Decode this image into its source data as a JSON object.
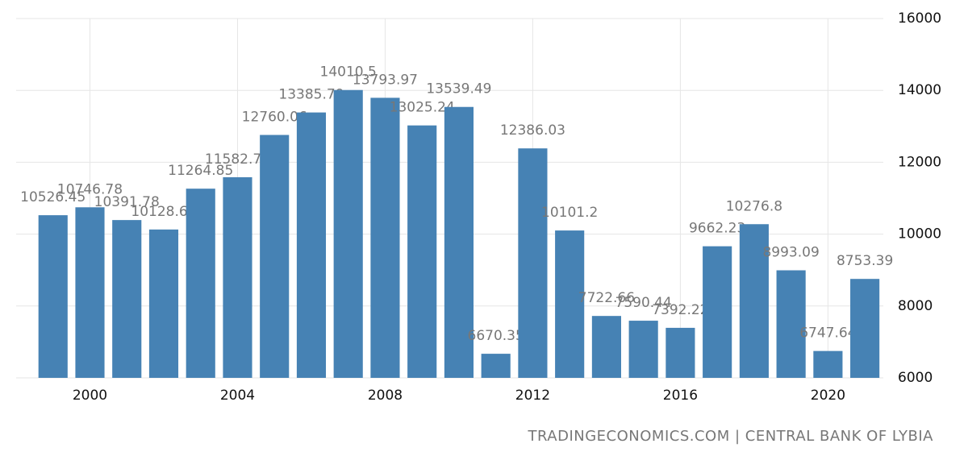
{
  "chart_data": {
    "type": "bar",
    "x": [
      1999,
      2000,
      2001,
      2002,
      2003,
      2004,
      2005,
      2006,
      2007,
      2008,
      2009,
      2010,
      2011,
      2012,
      2013,
      2014,
      2015,
      2016,
      2017,
      2018,
      2019,
      2020,
      2021
    ],
    "values": [
      10526.45,
      10746.78,
      10391.78,
      10128.67,
      11264.85,
      11582.76,
      12760.06,
      13385.79,
      14010.5,
      13793.97,
      13025.24,
      13539.49,
      6670.35,
      12386.03,
      10101.2,
      7722.66,
      7590.44,
      7392.22,
      9662.23,
      10276.8,
      8993.09,
      6747.64,
      8753.39
    ],
    "color": "#4682b4",
    "xlim": [
      1998,
      2021.5
    ],
    "xticks": [
      2000,
      2004,
      2008,
      2012,
      2016,
      2020
    ],
    "ylim": [
      6000,
      16000
    ],
    "yticks": [
      6000,
      8000,
      10000,
      12000,
      14000,
      16000
    ],
    "grid": true,
    "source": "TRADINGECONOMICS.COM | CENTRAL BANK OF LYBIA"
  }
}
